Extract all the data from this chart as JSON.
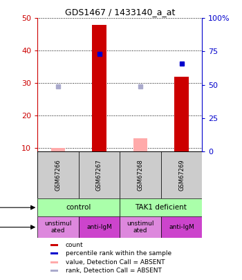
{
  "title": "GDS1467 / 1433140_a_at",
  "samples": [
    "GSM67266",
    "GSM67267",
    "GSM67268",
    "GSM67269"
  ],
  "counts": [
    null,
    48,
    null,
    32
  ],
  "counts_absent": [
    10,
    null,
    13,
    null
  ],
  "percentile_ranks": [
    null,
    39,
    null,
    36
  ],
  "percentile_ranks_absent": [
    29,
    null,
    29,
    null
  ],
  "ylim_left": [
    9,
    50
  ],
  "ylim_right": [
    0,
    100
  ],
  "yticks_left": [
    10,
    20,
    30,
    40,
    50
  ],
  "yticks_right": [
    0,
    25,
    50,
    75,
    100
  ],
  "ytick_labels_right": [
    "0",
    "25",
    "50",
    "75",
    "100%"
  ],
  "bar_color_present": "#cc0000",
  "bar_color_absent": "#ffaaaa",
  "dot_color_present": "#0000cc",
  "dot_color_absent": "#aaaacc",
  "cell_line_labels": [
    "control",
    "TAK1 deficient"
  ],
  "cell_line_spans": [
    [
      0,
      2
    ],
    [
      2,
      4
    ]
  ],
  "cell_line_color": "#aaffaa",
  "agent_labels": [
    "unstimul\nated",
    "anti-IgM",
    "unstimul\nated",
    "anti-IgM"
  ],
  "agent_colors": [
    "#dd88dd",
    "#cc44cc",
    "#dd88dd",
    "#cc44cc"
  ],
  "legend_items": [
    {
      "color": "#cc0000",
      "label": "count"
    },
    {
      "color": "#0000cc",
      "label": "percentile rank within the sample"
    },
    {
      "color": "#ffaaaa",
      "label": "value, Detection Call = ABSENT"
    },
    {
      "color": "#aaaacc",
      "label": "rank, Detection Call = ABSENT"
    }
  ],
  "bar_width": 0.35
}
